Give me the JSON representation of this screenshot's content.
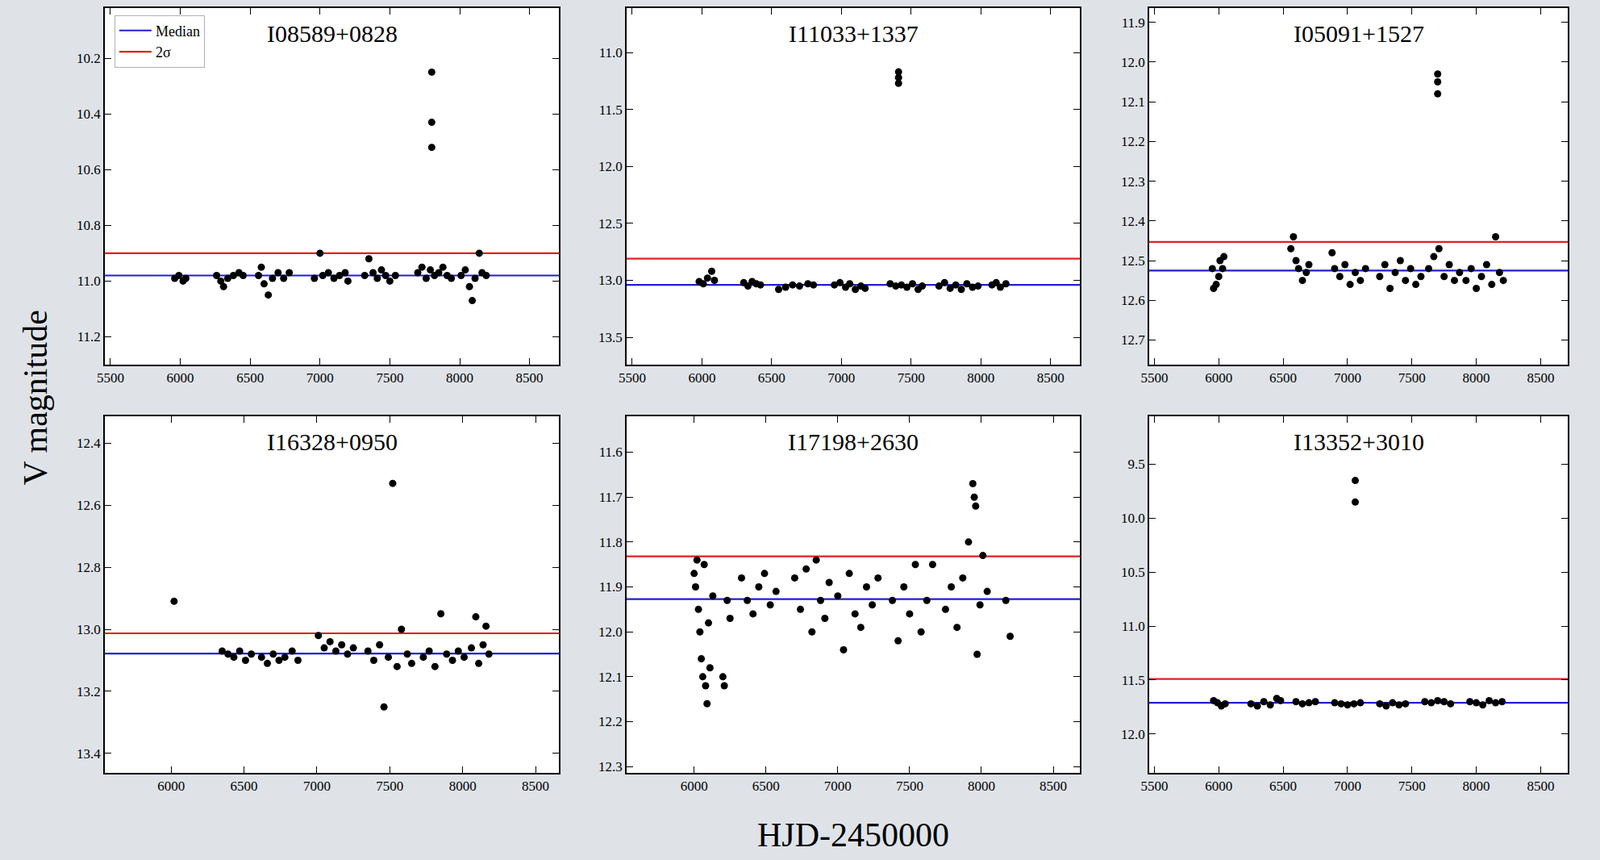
{
  "x_label": "HJD-2450000",
  "y_label": "V magnitude",
  "chart_data": [
    {
      "type": "scatter",
      "title": "I08589+0828",
      "color": "#000000",
      "marker": "circle",
      "legend": "upper left",
      "xlim": [
        5460,
        8710
      ],
      "xticks": [
        5500,
        6000,
        6500,
        7000,
        7500,
        8000,
        8500
      ],
      "ylim": [
        11.3,
        10.02
      ],
      "yticks": [
        10.2,
        10.4,
        10.6,
        10.8,
        {
          "value": 11,
          "label": "11.0"
        },
        11.2
      ],
      "reference_lines": [
        {
          "name": "Median",
          "color": "#1f1fd6",
          "value": 10.98
        },
        {
          "name": "2σ",
          "color": "#e02020",
          "value": 10.9
        }
      ],
      "x": [
        5960,
        5990,
        6020,
        6040,
        6260,
        6290,
        6310,
        6340,
        6380,
        6420,
        6450,
        6560,
        6580,
        6600,
        6630,
        6660,
        6700,
        6740,
        6780,
        6960,
        7000,
        7020,
        7060,
        7100,
        7140,
        7180,
        7200,
        7320,
        7350,
        7380,
        7410,
        7440,
        7470,
        7500,
        7540,
        7700,
        7730,
        7760,
        7790,
        7820,
        7850,
        7880,
        7910,
        7940,
        8010,
        8040,
        8070,
        8090,
        8110,
        8140,
        8160,
        8190,
        7800,
        7800,
        7800
      ],
      "values": [
        10.99,
        10.98,
        11.0,
        10.99,
        10.98,
        11.0,
        11.02,
        10.99,
        10.98,
        10.97,
        10.98,
        10.98,
        10.95,
        11.01,
        11.05,
        10.99,
        10.97,
        10.99,
        10.97,
        10.99,
        10.9,
        10.98,
        10.97,
        10.99,
        10.98,
        10.97,
        11.0,
        10.98,
        10.92,
        10.97,
        10.99,
        10.96,
        10.98,
        11.0,
        10.98,
        10.97,
        10.95,
        10.99,
        10.96,
        10.98,
        10.97,
        10.95,
        10.98,
        10.99,
        10.98,
        10.96,
        11.02,
        11.07,
        10.99,
        10.9,
        10.97,
        10.98,
        10.25,
        10.43,
        10.52
      ]
    },
    {
      "type": "scatter",
      "title": "I11033+1337",
      "color": "#000000",
      "marker": "circle",
      "xlim": [
        5460,
        8710
      ],
      "xticks": [
        5500,
        6000,
        6500,
        7000,
        7500,
        8000,
        8500
      ],
      "ylim": [
        13.74,
        10.61
      ],
      "yticks": [
        {
          "value": 11,
          "label": "11.0"
        },
        11.5,
        {
          "value": 12,
          "label": "12.0"
        },
        12.5,
        {
          "value": 13,
          "label": "13.0"
        },
        13.5
      ],
      "reference_lines": [
        {
          "name": "Median",
          "color": "#1f1fd6",
          "value": 13.04
        },
        {
          "name": "2σ",
          "color": "#e02020",
          "value": 12.81
        }
      ],
      "x": [
        5980,
        6010,
        6040,
        6070,
        6090,
        6300,
        6330,
        6360,
        6390,
        6420,
        6550,
        6600,
        6650,
        6700,
        6760,
        6800,
        6950,
        6990,
        7030,
        7060,
        7100,
        7140,
        7170,
        7350,
        7390,
        7430,
        7470,
        7510,
        7550,
        7580,
        7700,
        7740,
        7780,
        7820,
        7860,
        7900,
        7940,
        7980,
        8080,
        8110,
        8140,
        8180,
        7410,
        7410,
        7410
      ],
      "values": [
        13.01,
        13.03,
        12.98,
        12.92,
        13.0,
        13.02,
        13.05,
        13.01,
        13.03,
        13.04,
        13.08,
        13.06,
        13.04,
        13.05,
        13.03,
        13.04,
        13.04,
        13.02,
        13.06,
        13.03,
        13.08,
        13.05,
        13.07,
        13.03,
        13.05,
        13.04,
        13.06,
        13.03,
        13.08,
        13.05,
        13.05,
        13.02,
        13.07,
        13.04,
        13.08,
        13.03,
        13.06,
        13.05,
        13.04,
        13.02,
        13.06,
        13.03,
        11.17,
        11.22,
        11.27
      ]
    },
    {
      "type": "scatter",
      "title": "I05091+1527",
      "color": "#000000",
      "marker": "circle",
      "xlim": [
        5460,
        8710
      ],
      "xticks": [
        5500,
        6000,
        6500,
        7000,
        7500,
        8000,
        8500
      ],
      "ylim": [
        12.762,
        11.864
      ],
      "yticks": [
        11.9,
        {
          "value": 12,
          "label": "12.0"
        },
        12.1,
        12.2,
        12.3,
        12.4,
        12.5,
        12.6,
        12.7
      ],
      "reference_lines": [
        {
          "name": "Median",
          "color": "#1f1fd6",
          "value": 12.525
        },
        {
          "name": "2σ",
          "color": "#e02020",
          "value": 12.453
        }
      ],
      "x": [
        5950,
        5960,
        5980,
        6000,
        6010,
        6030,
        6040,
        6560,
        6580,
        6600,
        6620,
        6650,
        6680,
        6700,
        6880,
        6900,
        6940,
        6980,
        7020,
        7060,
        7100,
        7140,
        7250,
        7290,
        7330,
        7370,
        7410,
        7450,
        7490,
        7530,
        7570,
        7630,
        7670,
        7710,
        7750,
        7790,
        7830,
        7870,
        7920,
        7960,
        8000,
        8040,
        8080,
        8120,
        8150,
        8180,
        8210,
        7700,
        7700,
        7700
      ],
      "values": [
        12.52,
        12.57,
        12.56,
        12.54,
        12.5,
        12.52,
        12.49,
        12.47,
        12.44,
        12.5,
        12.52,
        12.55,
        12.53,
        12.51,
        12.48,
        12.52,
        12.54,
        12.51,
        12.56,
        12.53,
        12.55,
        12.52,
        12.54,
        12.51,
        12.57,
        12.53,
        12.5,
        12.55,
        12.52,
        12.56,
        12.54,
        12.52,
        12.49,
        12.47,
        12.54,
        12.51,
        12.55,
        12.53,
        12.55,
        12.52,
        12.57,
        12.54,
        12.51,
        12.56,
        12.44,
        12.53,
        12.55,
        12.03,
        12.05,
        12.08
      ]
    },
    {
      "type": "scatter",
      "title": "I16328+0950",
      "color": "#000000",
      "marker": "circle",
      "xlim": [
        5545,
        8660
      ],
      "xticks": [
        6000,
        6500,
        7000,
        7500,
        8000,
        8500
      ],
      "ylim": [
        13.4625,
        12.314
      ],
      "yticks": [
        12.4,
        12.6,
        12.8,
        {
          "value": 13,
          "label": "13.0"
        },
        13.2,
        13.4
      ],
      "reference_lines": [
        {
          "name": "Median",
          "color": "#1f1fd6",
          "value": 13.078
        },
        {
          "name": "2σ",
          "color": "#e02020",
          "value": 13.013
        }
      ],
      "x": [
        6020,
        6350,
        6390,
        6430,
        6470,
        6510,
        6550,
        6620,
        6660,
        6700,
        6740,
        6780,
        6830,
        6870,
        7010,
        7050,
        7090,
        7130,
        7170,
        7210,
        7250,
        7350,
        7390,
        7430,
        7460,
        7490,
        7520,
        7550,
        7580,
        7620,
        7650,
        7730,
        7770,
        7810,
        7850,
        7890,
        7930,
        7970,
        8010,
        8060,
        8090,
        8110,
        8140,
        8160,
        8180
      ],
      "values": [
        12.91,
        13.07,
        13.08,
        13.09,
        13.07,
        13.1,
        13.08,
        13.09,
        13.11,
        13.08,
        13.1,
        13.09,
        13.07,
        13.1,
        13.02,
        13.06,
        13.04,
        13.07,
        13.05,
        13.08,
        13.06,
        13.07,
        13.1,
        13.05,
        13.25,
        13.09,
        12.53,
        13.12,
        13.0,
        13.08,
        13.11,
        13.09,
        13.07,
        13.12,
        12.95,
        13.08,
        13.1,
        13.07,
        13.09,
        13.06,
        12.96,
        13.11,
        13.05,
        12.99,
        13.08
      ]
    },
    {
      "type": "scatter",
      "title": "I17198+2630",
      "color": "#000000",
      "marker": "circle",
      "xlim": [
        5530,
        8685
      ],
      "xticks": [
        6000,
        6500,
        7000,
        7500,
        8000,
        8500
      ],
      "ylim": [
        12.314,
        11.52
      ],
      "yticks": [
        11.6,
        11.7,
        11.8,
        11.9,
        {
          "value": 12,
          "label": "12.0"
        },
        12.1,
        12.2,
        12.3
      ],
      "reference_lines": [
        {
          "name": "Median",
          "color": "#1f1fd6",
          "value": 11.927
        },
        {
          "name": "2σ",
          "color": "#e02020",
          "value": 11.832
        }
      ],
      "x": [
        6000,
        6010,
        6020,
        6030,
        6040,
        6050,
        6060,
        6070,
        6080,
        6090,
        6100,
        6110,
        6130,
        6200,
        6210,
        6230,
        6250,
        6330,
        6370,
        6410,
        6450,
        6490,
        6530,
        6570,
        6700,
        6740,
        6780,
        6820,
        6850,
        6880,
        6910,
        6940,
        7000,
        7040,
        7080,
        7120,
        7160,
        7200,
        7240,
        7280,
        7380,
        7420,
        7460,
        7500,
        7540,
        7580,
        7620,
        7660,
        7750,
        7790,
        7830,
        7870,
        7910,
        7940,
        7950,
        7960,
        7970,
        7990,
        8010,
        8040,
        8170,
        8200
      ],
      "values": [
        11.87,
        11.9,
        11.84,
        11.95,
        12.0,
        12.06,
        12.1,
        11.85,
        12.12,
        12.16,
        11.98,
        12.08,
        11.92,
        12.1,
        12.12,
        11.93,
        11.97,
        11.88,
        11.93,
        11.96,
        11.9,
        11.87,
        11.94,
        11.91,
        11.88,
        11.95,
        11.86,
        12.0,
        11.84,
        11.93,
        11.97,
        11.89,
        11.92,
        12.04,
        11.87,
        11.96,
        11.99,
        11.9,
        11.94,
        11.88,
        11.93,
        12.02,
        11.9,
        11.96,
        11.85,
        12.0,
        11.93,
        11.85,
        11.95,
        11.9,
        11.99,
        11.88,
        11.8,
        11.67,
        11.7,
        11.72,
        12.05,
        11.94,
        11.83,
        11.91,
        11.93,
        12.01
      ]
    },
    {
      "type": "scatter",
      "title": "I13352+3010",
      "color": "#000000",
      "marker": "circle",
      "xlim": [
        5460,
        8710
      ],
      "xticks": [
        5500,
        6000,
        6500,
        7000,
        7500,
        8000,
        8500
      ],
      "ylim": [
        12.36,
        9.055
      ],
      "yticks": [
        9.5,
        {
          "value": 10,
          "label": "10.0"
        },
        10.5,
        {
          "value": 11,
          "label": "11.0"
        },
        11.5,
        {
          "value": 12,
          "label": "12.0"
        }
      ],
      "reference_lines": [
        {
          "name": "Median",
          "color": "#1f1fd6",
          "value": 11.71
        },
        {
          "name": "2σ",
          "color": "#e02020",
          "value": 11.49
        }
      ],
      "x": [
        5960,
        5990,
        6020,
        6050,
        6250,
        6300,
        6350,
        6400,
        6450,
        6480,
        6600,
        6650,
        6700,
        6750,
        6900,
        6950,
        7000,
        7050,
        7100,
        7250,
        7300,
        7350,
        7400,
        7450,
        7600,
        7650,
        7700,
        7750,
        7800,
        7950,
        8000,
        8050,
        8100,
        8150,
        8200,
        7060,
        7060
      ],
      "values": [
        11.69,
        11.71,
        11.74,
        11.72,
        11.72,
        11.74,
        11.7,
        11.73,
        11.67,
        11.69,
        11.7,
        11.72,
        11.71,
        11.7,
        11.71,
        11.72,
        11.73,
        11.72,
        11.71,
        11.72,
        11.74,
        11.71,
        11.73,
        11.72,
        11.7,
        11.71,
        11.69,
        11.7,
        11.72,
        11.7,
        11.71,
        11.73,
        11.69,
        11.71,
        11.7,
        9.65,
        9.85
      ]
    }
  ]
}
